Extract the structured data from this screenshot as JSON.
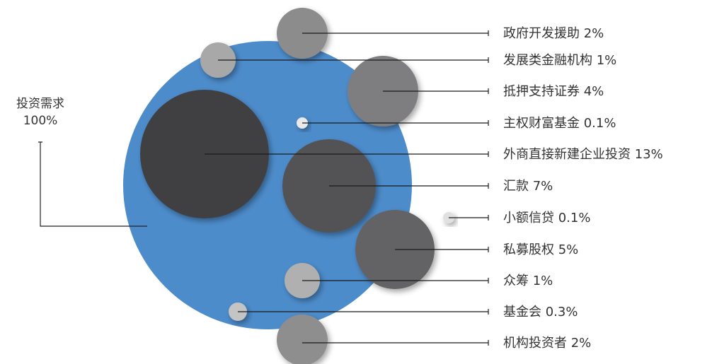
{
  "diagram": {
    "total": {
      "label": "投资需求",
      "value": "100%"
    },
    "container_color": "#4d8ccb",
    "items": [
      {
        "label": "政府开发援助 2%",
        "share": 2,
        "color": "#8c8c8c"
      },
      {
        "label": "发展类金融机构 1%",
        "share": 1,
        "color": "#a8a8a8"
      },
      {
        "label": "抵押支持证券 4%",
        "share": 4,
        "color": "#7e7e80"
      },
      {
        "label": "主权财富基金 0.1%",
        "share": 0.1,
        "color": "#e9e9e9"
      },
      {
        "label": "外商直接新建企业投资 13%",
        "share": 13,
        "color": "#404042"
      },
      {
        "label": "汇款 7%",
        "share": 7,
        "color": "#525254"
      },
      {
        "label": "小额信贷 0.1%",
        "share": 0.1,
        "color": "#e0e0e0"
      },
      {
        "label": "私募股权 5%",
        "share": 5,
        "color": "#636365"
      },
      {
        "label": "众筹 1%",
        "share": 1,
        "color": "#b0b0b0"
      },
      {
        "label": "基金会 0.3%",
        "share": 0.3,
        "color": "#c4c4c4"
      },
      {
        "label": "机构投资者 2%",
        "share": 2,
        "color": "#8e8e8e"
      }
    ]
  }
}
